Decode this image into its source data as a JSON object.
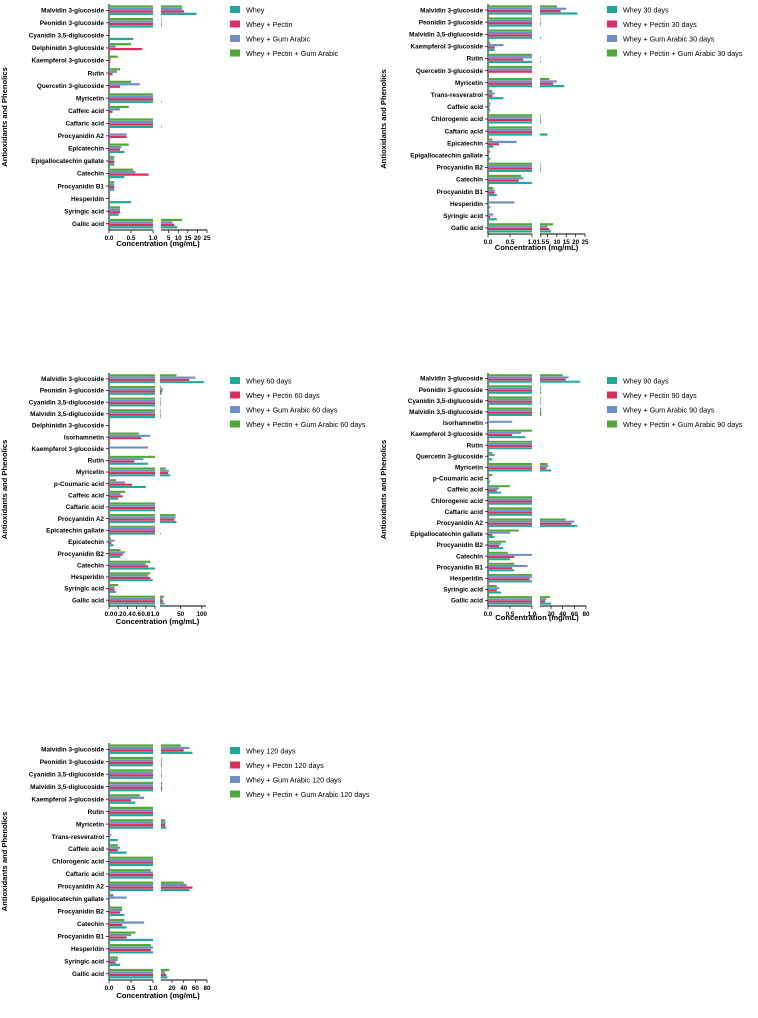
{
  "colors": {
    "whey": "#20a99a",
    "pectin": "#d92e5e",
    "gum_arabic": "#6f8fc4",
    "pectin_gum_arabic": "#4fa935",
    "axis": "#000000"
  },
  "chart_data": [
    {
      "type": "bar",
      "orientation": "horizontal",
      "xlabel": "Concentration (mg/mL)",
      "ylabel": "Antioxidants and Phenolics",
      "x_break": {
        "segment1": [
          0,
          1.0
        ],
        "segment2": [
          1.0,
          25
        ]
      },
      "segment1_ticks": [
        "0.0",
        "0.5",
        "1.0"
      ],
      "segment2_ticks": [
        {
          "v": 5,
          "label": "5"
        },
        {
          "v": 10,
          "label": "10"
        },
        {
          "v": 15,
          "label": "15"
        },
        {
          "v": 20,
          "label": "20"
        },
        {
          "v": 25,
          "label": "25"
        }
      ],
      "legend_position": "right",
      "categories": [
        "Malvidin 3-glucoside",
        "Peonidin 3-glucoside",
        "Cyanidin 3,5-diglucoside",
        "Delphinidin 3-glucoside",
        "Kaempferol 3-glucoside",
        "Rutin",
        "Quercetin 3-glucoside",
        "Myricetin",
        "Caffeic acid",
        "Caftaric acid",
        "Procyanidin A2",
        "Epicatechin",
        "Epigallocatechin gallate",
        "Catechin",
        "Procyanidin B1",
        "Hesperidin",
        "Syringic acid",
        "Gallic acid"
      ],
      "series": [
        {
          "name": "Whey",
          "values": [
            19.5,
            1.3,
            0.55,
            0,
            0,
            0,
            0,
            1.3,
            0,
            1.3,
            0,
            0.35,
            0.12,
            0.35,
            0.12,
            0.5,
            0.22,
            9.5
          ]
        },
        {
          "name": "Whey + Pectin",
          "values": [
            13,
            1.2,
            0,
            0.75,
            0.03,
            0.08,
            0.25,
            1.0,
            0.08,
            1.0,
            0.4,
            0.25,
            0.12,
            0.9,
            0.12,
            0,
            0.25,
            8
          ]
        },
        {
          "name": "Whey + Gum Arabic",
          "values": [
            12,
            1.2,
            0,
            0.15,
            0.04,
            0.18,
            0.7,
            1.0,
            0.25,
            1.0,
            0.4,
            0.28,
            0.12,
            0.6,
            0.12,
            0,
            0.25,
            7
          ]
        },
        {
          "name": "Whey + Pectin + Gum Arabic",
          "values": [
            12,
            1.2,
            0,
            0.5,
            0.2,
            0.25,
            0.5,
            1.0,
            0.45,
            1.0,
            0,
            0.45,
            0.12,
            0.55,
            0.12,
            0,
            0.25,
            12
          ]
        }
      ]
    },
    {
      "type": "bar",
      "orientation": "horizontal",
      "xlabel": "Concentration (mg/mL)",
      "ylabel": "Antioxidants and Phenolics",
      "x_break": {
        "segment1": [
          0,
          1.0
        ],
        "segment2": [
          1.0,
          25
        ]
      },
      "segment1_ticks": [
        "0.0",
        "0.5",
        "1.0"
      ],
      "segment2_ticks": [
        {
          "v": 1.5,
          "label": "1.5"
        },
        {
          "v": 5,
          "label": "5"
        },
        {
          "v": 10,
          "label": "10"
        },
        {
          "v": 15,
          "label": "15"
        },
        {
          "v": 20,
          "label": "20"
        },
        {
          "v": 25,
          "label": "25"
        }
      ],
      "legend_position": "right",
      "categories": [
        "Malvidin 3-glucoside",
        "Peonidin 3-glucoside",
        "Malvidin 3,5-diglucoside",
        "Kaempferol 3-glucoside",
        "Rutin",
        "Quercetin 3-glucoside",
        "Myricetin",
        "Trans-resveratrol",
        "Caffeic acid",
        "Chlorogenic acid",
        "Caftaric acid",
        "Epicatechin",
        "Epigallocatechin gallate",
        "Procyanidin B2",
        "Catechin",
        "Procyanidin B1",
        "Hesperidin",
        "Syringic acid",
        "Gallic acid"
      ],
      "series": [
        {
          "name": "Whey 30 days",
          "values": [
            21,
            1.3,
            1.4,
            0.15,
            1.3,
            0,
            14,
            0.35,
            0.05,
            1.6,
            5,
            0.12,
            0.05,
            1.3,
            1.0,
            0.2,
            0.05,
            0.2,
            7
          ]
        },
        {
          "name": "Whey + Pectin 30 days",
          "values": [
            12,
            1.3,
            1.0,
            0.15,
            0.8,
            1.0,
            8,
            0.1,
            0.03,
            1.3,
            1.0,
            0.25,
            0,
            1.3,
            0.7,
            0.15,
            0,
            0.05,
            6
          ]
        },
        {
          "name": "Whey + Gum Arabic 30 days",
          "values": [
            15,
            1.3,
            1.0,
            0.35,
            1.2,
            1.0,
            10,
            0.15,
            0.05,
            1.4,
            1.0,
            0.65,
            0,
            1.3,
            0.8,
            0.15,
            0.6,
            0.12,
            5
          ]
        },
        {
          "name": "Whey + Pectin + Gum Arabic 30 days",
          "values": [
            10,
            1.3,
            1.0,
            0.05,
            1.0,
            1.0,
            6,
            0.1,
            0.05,
            1.3,
            1.0,
            0.1,
            0.05,
            1.3,
            0.75,
            0.12,
            0,
            0.03,
            8
          ]
        }
      ]
    },
    {
      "type": "bar",
      "orientation": "horizontal",
      "xlabel": "Concentration (mg/mL)",
      "ylabel": "Antioxidants and Phenolics",
      "x_break": {
        "segment1": [
          0,
          1.0
        ],
        "segment2": [
          1.0,
          110
        ]
      },
      "segment1_ticks": [
        "0.0",
        "0.2",
        "0.4",
        "0.6",
        "0.8",
        "1.0"
      ],
      "segment2_ticks": [
        {
          "v": 50,
          "label": "50"
        },
        {
          "v": 100,
          "label": "100"
        }
      ],
      "legend_position": "right",
      "categories": [
        "Malvidin 3-glucoside",
        "Peonidin 3-glucoside",
        "Cyanidin 3,5-diglucoside",
        "Malvidin 3,5-diglucoside",
        "Delphinidin 3-glucoside",
        "Isorhamnetin",
        "Kaempferol 3-glucoside",
        "Rutin",
        "Myricetin",
        "p-Coumaric acid",
        "Caffeic acid",
        "Caftaric acid",
        "Procyanidin A2",
        "Epicatechin gallate",
        "Epicatechin",
        "Procyanidin B2",
        "Catechin",
        "Hesperidin",
        "Syringic acid",
        "Gallic acid"
      ],
      "series": [
        {
          "name": "Whey 60 days",
          "values": [
            105,
            5,
            2,
            2,
            0,
            0,
            0,
            0.85,
            25,
            0.8,
            0.2,
            1.0,
            40,
            2,
            0.1,
            0.25,
            1.0,
            0.95,
            0.15,
            12
          ]
        },
        {
          "name": "Whey + Pectin 60 days",
          "values": [
            70,
            6,
            2,
            2,
            0,
            0.7,
            0,
            0.55,
            20,
            0.5,
            0.3,
            1.0,
            35,
            1.0,
            0.05,
            0.3,
            0.85,
            0.9,
            0.12,
            8
          ]
        },
        {
          "name": "Whey + Gum Arabic 60 days",
          "values": [
            85,
            8,
            2,
            2,
            0,
            0.9,
            0.85,
            0.75,
            22,
            0.35,
            0.25,
            1.0,
            38,
            1.0,
            0.12,
            0.35,
            0.8,
            0.85,
            0.12,
            7
          ]
        },
        {
          "name": "Whey + Pectin + Gum Arabic 60 days",
          "values": [
            40,
            3,
            2,
            2,
            0,
            0.65,
            0,
            1.0,
            15,
            0.15,
            0.35,
            1.0,
            38,
            1.0,
            0.04,
            0.25,
            0.9,
            0.9,
            0.2,
            10
          ]
        }
      ]
    },
    {
      "type": "bar",
      "orientation": "horizontal",
      "xlabel": "Concentration (mg/mL)",
      "ylabel": "Antioxidants and Phenolics",
      "x_break": {
        "segment1": [
          0,
          1.0
        ],
        "segment2": [
          1.0,
          80
        ]
      },
      "segment1_ticks": [
        "0.0",
        "0.5",
        "1.0"
      ],
      "segment2_ticks": [
        {
          "v": 20,
          "label": "20"
        },
        {
          "v": 40,
          "label": "40"
        },
        {
          "v": 60,
          "label": "60"
        },
        {
          "v": 80,
          "label": "80"
        }
      ],
      "legend_position": "right",
      "categories": [
        "Malvidin 3-glucoside",
        "Peonidin 3-glucoside",
        "Cyanidin 3,5-diglucoside",
        "Malvidin 3,5-diglucoside",
        "Isorhamnetin",
        "Kaempferol 3-glucoside",
        "Rutin",
        "Quercetin 3-glucoside",
        "Myricetin",
        "p-Coumaric acid",
        "Caffeic acid",
        "Chlorogenic acid",
        "Caftaric acid",
        "Procyanidin A2",
        "Epigallocatechin gallate",
        "Procyanidin B2",
        "Catechin",
        "Procyanidin B1",
        "Hesperidin",
        "Syringic acid",
        "Gallic acid"
      ],
      "series": [
        {
          "name": "Whey 90 days",
          "values": [
            70,
            3,
            1.5,
            3,
            0,
            0.85,
            1.0,
            0.1,
            20,
            0.05,
            0.3,
            1.0,
            1.0,
            65,
            0.15,
            0.35,
            0.5,
            0.6,
            1.0,
            0.3,
            20
          ]
        },
        {
          "name": "Whey + Pectin 90 days",
          "values": [
            45,
            2,
            1.5,
            3,
            0,
            0.55,
            1.0,
            0,
            12,
            0.02,
            0.2,
            1.0,
            1.0,
            55,
            0.1,
            0.25,
            0.6,
            0.55,
            0.95,
            0.2,
            10
          ]
        },
        {
          "name": "Whey + Gum Arabic 90 days",
          "values": [
            50,
            2.5,
            1.5,
            3,
            0.55,
            0.75,
            1.0,
            0.15,
            15,
            0.03,
            0.25,
            1.0,
            1.0,
            60,
            0.5,
            0.3,
            1.0,
            0.9,
            1.0,
            0.25,
            12
          ]
        },
        {
          "name": "Whey + Pectin + Gum Arabic 90 days",
          "values": [
            40,
            1.5,
            1.5,
            3,
            0,
            1.0,
            1.0,
            0.1,
            14,
            0.1,
            0.5,
            1.0,
            1.0,
            45,
            0.7,
            0.4,
            0.45,
            0.6,
            1.0,
            0.2,
            18
          ]
        }
      ]
    },
    {
      "type": "bar",
      "orientation": "horizontal",
      "xlabel": "Concentration (mg/mL)",
      "ylabel": "Antioxidants and Phenolics",
      "x_break": {
        "segment1": [
          0,
          1.0
        ],
        "segment2": [
          1.0,
          80
        ]
      },
      "segment1_ticks": [
        "0.0",
        "0.5",
        "1.0"
      ],
      "segment2_ticks": [
        {
          "v": 20,
          "label": "20"
        },
        {
          "v": 40,
          "label": "40"
        },
        {
          "v": 60,
          "label": "60"
        },
        {
          "v": 80,
          "label": "80"
        }
      ],
      "legend_position": "right",
      "categories": [
        "Malvidin 3-glucoside",
        "Peonidin 3-glucoside",
        "Cyanidin 3,5-diglucoside",
        "Malvidin 3,5-diglucoside",
        "Kaempferol 3-glucoside",
        "Rutin",
        "Myricetin",
        "Trans-resveratrol",
        "Caffeic acid",
        "Chlorogenic acid",
        "Caftaric acid",
        "Procyanidin A2",
        "Epigallocatechin gallate",
        "Procyanidin B2",
        "Catechin",
        "Procyanidin B1",
        "Hesperidin",
        "Syringic acid",
        "Gallic acid"
      ],
      "series": [
        {
          "name": "Whey 120 days",
          "values": [
            55,
            3,
            1.5,
            3,
            0.6,
            1.0,
            10,
            0.2,
            0.4,
            1.0,
            1.0,
            50,
            0,
            0.35,
            0.4,
            1.0,
            1.0,
            0.25,
            12
          ]
        },
        {
          "name": "Whey + Pectin 120 days",
          "values": [
            40,
            2,
            1.5,
            3,
            0.5,
            1.0,
            8,
            0,
            0.2,
            1.0,
            1.0,
            55,
            0,
            0.25,
            0.3,
            0.4,
            0.95,
            0.15,
            10
          ]
        },
        {
          "name": "Whey + Gum Arabic 120 days",
          "values": [
            50,
            2.5,
            1.5,
            3,
            0.8,
            1.0,
            9,
            0.05,
            0.25,
            1.0,
            1.0,
            45,
            0.4,
            0.3,
            0.8,
            0.5,
            1.0,
            0.2,
            8
          ]
        },
        {
          "name": "Whey + Pectin + Gum Arabic 120 days",
          "values": [
            35,
            1.5,
            1.5,
            3,
            0.7,
            1.0,
            8,
            0,
            0.2,
            1.0,
            0.95,
            40,
            0.1,
            0.3,
            0.35,
            0.6,
            0.95,
            0.2,
            15
          ]
        }
      ]
    }
  ]
}
